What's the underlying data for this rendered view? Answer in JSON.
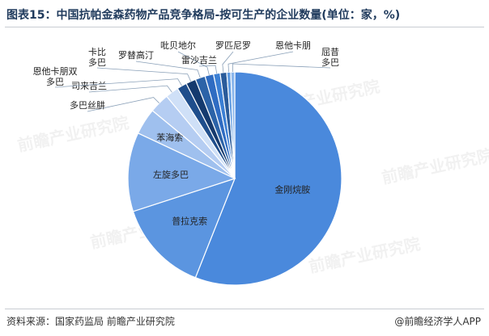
{
  "header": {
    "title": "图表15：中国抗帕金森药物产品竞争格局-按可生产的企业数量(单位：家，%)"
  },
  "footer": {
    "source": "资料来源：国家药监局 前瞻产业研究院",
    "brand": "@前瞻经济学人APP"
  },
  "watermarks": [
    "前瞻产业研究院",
    "前瞻产业研究院",
    "前瞻产业研究院",
    "前瞻产业研究院",
    "前瞻产业研究院"
  ],
  "colors": {
    "title": "#1f3a5c",
    "label": "#222222",
    "leader": "#8aa0b8"
  },
  "chart_data": {
    "type": "pie",
    "title": "图表15：中国抗帕金森药物产品竞争格局-按可生产的企业数量(单位：家，%)",
    "start_angle_deg": 0,
    "direction": "clockwise",
    "slices": [
      {
        "label": "金刚烷胺",
        "value": 56.0,
        "color": "#4a89dc"
      },
      {
        "label": "普拉克索",
        "value": 14.0,
        "color": "#5b95e0"
      },
      {
        "label": "左旋多巴",
        "value": 12.0,
        "color": "#7aa9e8"
      },
      {
        "label": "苯海索",
        "value": 4.0,
        "color": "#9fc0ee"
      },
      {
        "label": "多巴丝肼",
        "value": 3.0,
        "color": "#b5cdf2"
      },
      {
        "label": "司来吉兰",
        "value": 2.0,
        "color": "#cfe0f7"
      },
      {
        "label": "恩他卡朋双多巴",
        "value": 1.5,
        "color": "#1f4e8c"
      },
      {
        "label": "卡比多巴",
        "value": 1.5,
        "color": "#153a6e"
      },
      {
        "label": "罗替高汀",
        "value": 1.5,
        "color": "#2c63a8"
      },
      {
        "label": "吡贝地尔",
        "value": 1.3,
        "color": "#2f6cc2"
      },
      {
        "label": "雷沙吉兰",
        "value": 1.0,
        "color": "#3b7fd4"
      },
      {
        "label": "罗匹尼罗",
        "value": 1.0,
        "color": "#2a5b9a"
      },
      {
        "label": "恩他卡朋",
        "value": 0.6,
        "color": "#5e9ae0"
      },
      {
        "label": "屈昔多巴",
        "value": 0.6,
        "color": "#8ab6ec"
      }
    ]
  }
}
